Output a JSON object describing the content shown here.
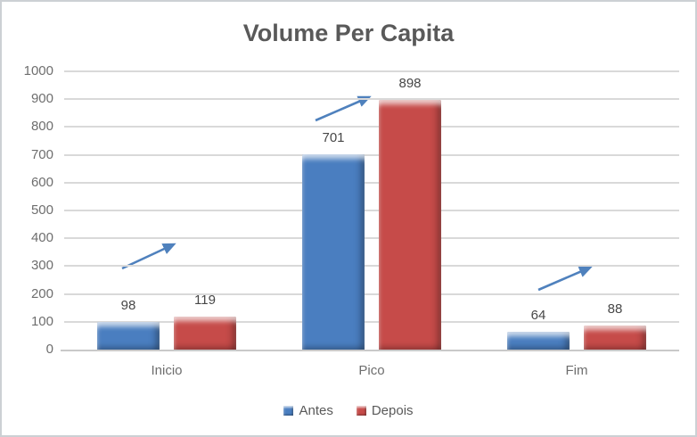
{
  "window": {
    "background": "#ffffff",
    "border_color": "#ccd0d4"
  },
  "chart_data": {
    "type": "bar",
    "title": "Volume Per Capita",
    "title_color": "#595959",
    "categories": [
      "Inicio",
      "Pico",
      "Fim"
    ],
    "series": [
      {
        "name": "Antes",
        "color": "#4a7ec0",
        "values": [
          98,
          701,
          64
        ]
      },
      {
        "name": "Depois",
        "color": "#c64b49",
        "values": [
          119,
          898,
          88
        ]
      }
    ],
    "xlabel": "",
    "ylabel": "",
    "ylim": [
      0,
      1000
    ],
    "ytick_interval": 100,
    "yticks": [
      0,
      100,
      200,
      300,
      400,
      500,
      600,
      700,
      800,
      900,
      1000
    ],
    "grid": true,
    "gridline_color": "#d9d9d9",
    "axis_label_color": "#6e6e6e",
    "value_label_color": "#474747",
    "data_labels_visible": true,
    "bar_style": "beveled-3d",
    "legend": {
      "position": "bottom",
      "entries": [
        "Antes",
        "Depois"
      ]
    },
    "annotations": [
      {
        "type": "trend-arrow",
        "color": "#4f81bd",
        "over_category": "Inicio",
        "direction": "up-right"
      },
      {
        "type": "trend-arrow",
        "color": "#4f81bd",
        "over_category": "Pico",
        "direction": "up-right"
      },
      {
        "type": "trend-arrow",
        "color": "#4f81bd",
        "over_category": "Fim",
        "direction": "up-right"
      }
    ]
  }
}
